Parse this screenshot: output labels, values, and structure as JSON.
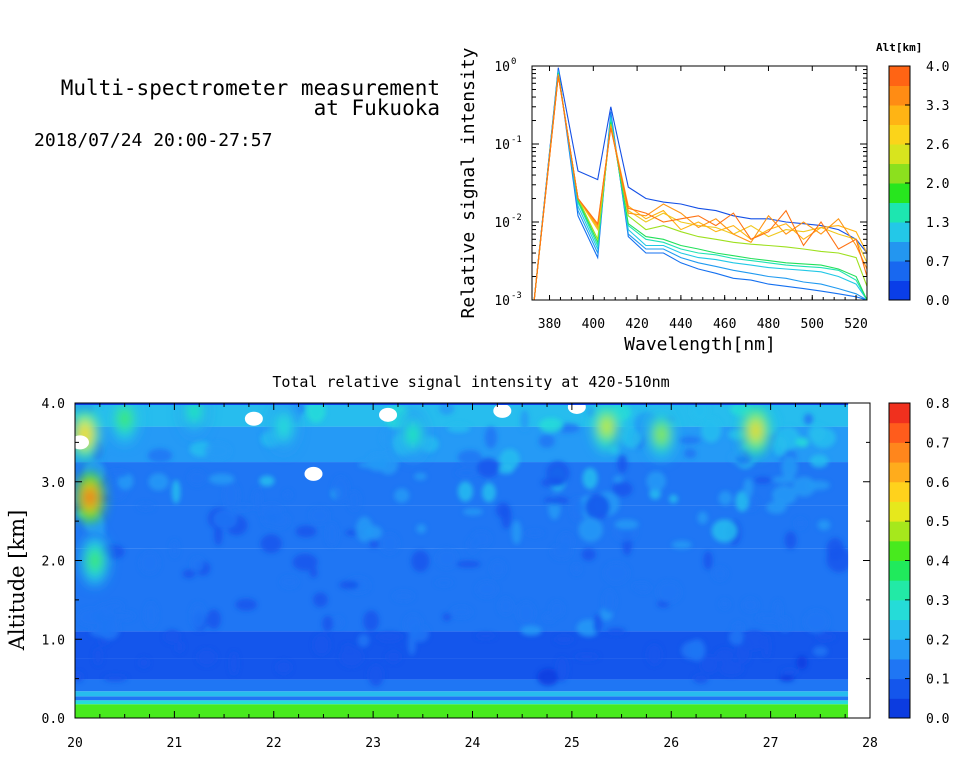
{
  "header": {
    "title_line1": "Multi-spectrometer measurement",
    "title_line2": "at Fukuoka",
    "datetime": "2018/07/24 20:00-27:57"
  },
  "colors": {
    "colorbar_alt": [
      "#0a3ee8",
      "#1868f0",
      "#2396f0",
      "#23c8e8",
      "#1de6b0",
      "#27e61e",
      "#8ce01e",
      "#d8e41e",
      "#fbd41a",
      "#ffb414",
      "#ff8c14",
      "#ff6414"
    ],
    "colorbar_int": [
      "#0c3ce0",
      "#1456ec",
      "#1f76f4",
      "#259af6",
      "#27bdee",
      "#25dcd8",
      "#22eaa6",
      "#20ea5c",
      "#48ea1e",
      "#a6e81c",
      "#e6e81c",
      "#ffd21c",
      "#ffac1c",
      "#ff861c",
      "#ff5c1c",
      "#f0301e"
    ]
  },
  "chart_data": [
    {
      "type": "line",
      "title": "",
      "xlabel": "Wavelength[nm]",
      "ylabel": "Relative signal intensity",
      "x_scale": "linear",
      "y_scale": "log",
      "xlim": [
        372,
        525
      ],
      "ylim": [
        0.001,
        1
      ],
      "x_ticks": [
        380,
        400,
        420,
        440,
        460,
        480,
        500,
        520
      ],
      "y_ticks": [
        {
          "value": 0.001,
          "base": "10",
          "exp": "-3"
        },
        {
          "value": 0.01,
          "base": "10",
          "exp": "-2"
        },
        {
          "value": 0.1,
          "base": "10",
          "exp": "-1"
        },
        {
          "value": 1,
          "base": "10",
          "exp": "0"
        }
      ],
      "colorbar": {
        "label": "Alt[km]",
        "min": 0.0,
        "max": 4.0,
        "tick_labels": [
          "0.0",
          "0.7",
          "1.3",
          "2.0",
          "2.6",
          "3.3",
          "4.0"
        ]
      },
      "x": [
        373,
        384,
        393,
        402,
        408,
        416,
        424,
        432,
        440,
        448,
        456,
        464,
        472,
        480,
        488,
        496,
        504,
        512,
        520,
        525
      ],
      "series": [
        {
          "altitude_km": 0.05,
          "color": "#1450e6",
          "values": [
            0.001,
            0.95,
            0.045,
            0.035,
            0.3,
            0.028,
            0.02,
            0.018,
            0.017,
            0.015,
            0.014,
            0.012,
            0.011,
            0.011,
            0.01,
            0.0095,
            0.009,
            0.008,
            0.006,
            0.004
          ]
        },
        {
          "altitude_km": 0.3,
          "color": "#1470f0",
          "values": [
            0.001,
            0.9,
            0.012,
            0.0035,
            0.26,
            0.0065,
            0.004,
            0.004,
            0.003,
            0.0025,
            0.0022,
            0.0019,
            0.0018,
            0.0016,
            0.0015,
            0.0014,
            0.0013,
            0.0012,
            0.0011,
            0.001
          ]
        },
        {
          "altitude_km": 0.7,
          "color": "#209af0",
          "values": [
            0.001,
            0.88,
            0.014,
            0.004,
            0.24,
            0.007,
            0.0045,
            0.0045,
            0.0035,
            0.003,
            0.0027,
            0.0024,
            0.0022,
            0.002,
            0.0019,
            0.0017,
            0.0016,
            0.0014,
            0.0012,
            0.001
          ]
        },
        {
          "altitude_km": 1.0,
          "color": "#22c8e6",
          "values": [
            0.001,
            0.85,
            0.016,
            0.0045,
            0.22,
            0.008,
            0.005,
            0.005,
            0.004,
            0.0035,
            0.0033,
            0.003,
            0.0028,
            0.0026,
            0.0025,
            0.0024,
            0.0023,
            0.002,
            0.0016,
            0.001
          ]
        },
        {
          "altitude_km": 1.3,
          "color": "#1ee2b4",
          "values": [
            0.001,
            0.82,
            0.018,
            0.005,
            0.2,
            0.009,
            0.006,
            0.0055,
            0.0045,
            0.004,
            0.0038,
            0.0034,
            0.0032,
            0.003,
            0.0028,
            0.0027,
            0.0026,
            0.0024,
            0.0018,
            0.001
          ]
        },
        {
          "altitude_km": 1.6,
          "color": "#22e05a",
          "values": [
            0.001,
            0.8,
            0.019,
            0.0055,
            0.19,
            0.0095,
            0.0065,
            0.006,
            0.005,
            0.0045,
            0.004,
            0.0037,
            0.0034,
            0.0032,
            0.003,
            0.0029,
            0.0028,
            0.0025,
            0.002,
            0.001
          ]
        },
        {
          "altitude_km": 2.0,
          "color": "#9ee01e",
          "values": [
            0.001,
            0.78,
            0.02,
            0.006,
            0.18,
            0.012,
            0.008,
            0.009,
            0.0075,
            0.0065,
            0.006,
            0.0055,
            0.0052,
            0.005,
            0.0048,
            0.0045,
            0.0042,
            0.004,
            0.0035,
            0.0015
          ]
        },
        {
          "altitude_km": 2.6,
          "color": "#f0c81e",
          "values": [
            0.001,
            0.78,
            0.02,
            0.008,
            0.17,
            0.014,
            0.01,
            0.013,
            0.01,
            0.009,
            0.0085,
            0.007,
            0.009,
            0.0065,
            0.008,
            0.0075,
            0.0085,
            0.007,
            0.006,
            0.003
          ]
        },
        {
          "altitude_km": 3.0,
          "color": "#ffb414",
          "values": [
            0.001,
            0.77,
            0.02,
            0.0085,
            0.17,
            0.016,
            0.011,
            0.014,
            0.008,
            0.01,
            0.0075,
            0.009,
            0.006,
            0.008,
            0.0095,
            0.006,
            0.0085,
            0.009,
            0.0075,
            0.004
          ]
        },
        {
          "altitude_km": 3.5,
          "color": "#ff9614",
          "values": [
            0.001,
            0.76,
            0.02,
            0.009,
            0.17,
            0.013,
            0.012,
            0.017,
            0.013,
            0.0085,
            0.011,
            0.007,
            0.0055,
            0.012,
            0.007,
            0.01,
            0.007,
            0.011,
            0.005,
            0.0025
          ]
        },
        {
          "altitude_km": 3.9,
          "color": "#ff7314",
          "values": [
            0.001,
            0.75,
            0.02,
            0.0095,
            0.16,
            0.015,
            0.013,
            0.01,
            0.011,
            0.012,
            0.009,
            0.013,
            0.006,
            0.0075,
            0.014,
            0.005,
            0.01,
            0.0045,
            0.006,
            0.002
          ]
        }
      ]
    },
    {
      "type": "heatmap",
      "title": "Total relative signal intensity at 420-510nm",
      "xlabel": "",
      "ylabel": "Altitude [km]",
      "xlim": [
        20,
        28
      ],
      "ylim": [
        0.0,
        4.0
      ],
      "x_ticks": [
        "20",
        "21",
        "22",
        "23",
        "24",
        "25",
        "26",
        "27",
        "28"
      ],
      "y_ticks": [
        "0.0",
        "1.0",
        "2.0",
        "3.0",
        "4.0"
      ],
      "data_x_end": 27.78,
      "colorbar": {
        "min": 0.0,
        "max": 0.8,
        "tick_labels": [
          "0.0",
          "0.1",
          "0.2",
          "0.3",
          "0.4",
          "0.5",
          "0.6",
          "0.7",
          "0.8"
        ]
      },
      "altitude_profile": [
        {
          "alt": 0.15,
          "value": 0.4
        },
        {
          "alt": 0.2,
          "value": 0.26
        },
        {
          "alt": 0.25,
          "value": 0.13
        },
        {
          "alt": 0.3,
          "value": 0.22
        },
        {
          "alt": 0.38,
          "value": 0.12
        },
        {
          "alt": 0.6,
          "value": 0.06
        },
        {
          "alt": 0.9,
          "value": 0.09
        },
        {
          "alt": 1.3,
          "value": 0.12
        },
        {
          "alt": 1.9,
          "value": 0.1
        },
        {
          "alt": 2.4,
          "value": 0.13
        },
        {
          "alt": 3.0,
          "value": 0.15
        },
        {
          "alt": 3.5,
          "value": 0.18
        },
        {
          "alt": 3.9,
          "value": 0.22
        }
      ],
      "hotspots": [
        {
          "time": 20.15,
          "alt": 2.8,
          "value": 0.75
        },
        {
          "time": 20.1,
          "alt": 3.6,
          "value": 0.6
        },
        {
          "time": 20.2,
          "alt": 2.0,
          "value": 0.4
        },
        {
          "time": 20.5,
          "alt": 3.8,
          "value": 0.4
        },
        {
          "time": 21.2,
          "alt": 3.9,
          "value": 0.35
        },
        {
          "time": 22.1,
          "alt": 3.7,
          "value": 0.3
        },
        {
          "time": 23.4,
          "alt": 3.6,
          "value": 0.35
        },
        {
          "time": 25.35,
          "alt": 3.7,
          "value": 0.5
        },
        {
          "time": 25.9,
          "alt": 3.6,
          "value": 0.45
        },
        {
          "time": 26.85,
          "alt": 3.65,
          "value": 0.55
        }
      ],
      "no_data_regions": [
        {
          "time": 20.05,
          "alt": 3.5
        },
        {
          "time": 21.8,
          "alt": 3.8
        },
        {
          "time": 22.4,
          "alt": 3.1
        },
        {
          "time": 24.3,
          "alt": 3.9
        },
        {
          "time": 25.05,
          "alt": 3.95
        },
        {
          "time": 23.15,
          "alt": 3.85
        }
      ]
    }
  ]
}
